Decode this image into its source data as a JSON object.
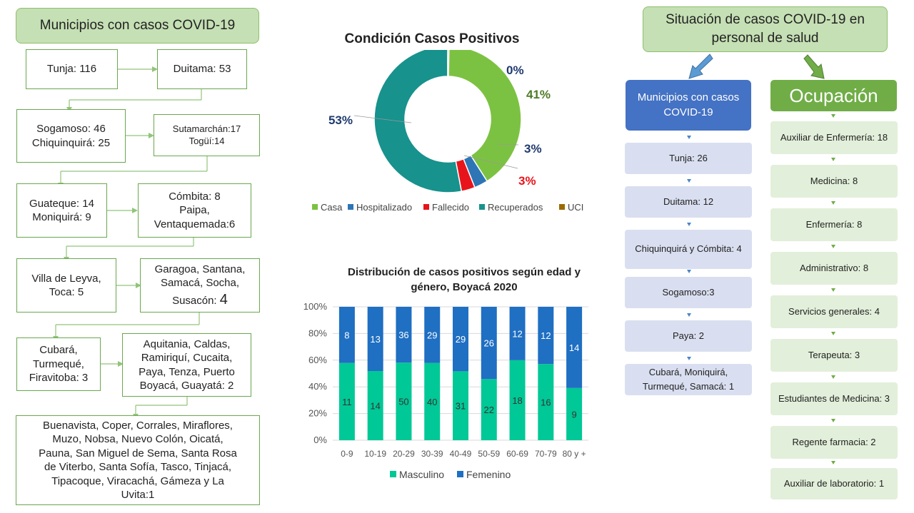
{
  "left": {
    "title": "Municipios con casos COVID-19",
    "boxes": [
      [
        "Tunja: 116"
      ],
      [
        "Duitama: 53"
      ],
      [
        "Sogamoso: 46",
        "Chiquinquirá: 25"
      ],
      [
        "Sutamarchán:17",
        "Togüí:14"
      ],
      [
        "Guateque: 14",
        "Moniquirá: 9"
      ],
      [
        "Cómbita: 8",
        "Paipa,",
        "Ventaquemada:6"
      ],
      [
        "Villa de Leyva,",
        "Toca: 5"
      ],
      [
        "Garagoa, Santana,",
        "Samacá, Socha,",
        "Susacón: "
      ],
      [
        "Cubará,",
        "Turmequé,",
        "Firavitoba: 3"
      ],
      [
        "Aquitania, Caldas,",
        "Ramiriquí, Cucaita,",
        "Paya, Tenza, Puerto",
        "Boyacá, Guayatá: 2"
      ],
      [
        "Buenavista, Coper, Corrales, Miraflores,",
        "Muzo, Nobsa, Nuevo Colón, Oicatá,",
        "Pauna, San Miguel de Sema, Santa Rosa",
        "de Viterbo, Santa Sofía, Tasco, Tinjacá,",
        "Tipacoque, Viracachá, Gámeza y La",
        "Uvita:1"
      ]
    ],
    "big_four": "4"
  },
  "chart_data": [
    {
      "type": "pie",
      "title": "Condición Casos Positivos",
      "categories": [
        "Casa",
        "Hospitalizado",
        "Fallecido",
        "Recuperados",
        "UCI"
      ],
      "values": [
        41,
        3,
        3,
        53,
        0
      ],
      "labels": [
        "41%",
        "3%",
        "3%",
        "53%",
        "0%"
      ],
      "colors": [
        "#7cc242",
        "#2e75b6",
        "#e8141b",
        "#17928d",
        "#9c6b00"
      ],
      "donut": true,
      "legend_position": "bottom"
    },
    {
      "type": "bar",
      "stacked": true,
      "percent": true,
      "title": "Distribución de casos positivos según edad y género, Boyacá 2020",
      "categories": [
        "0-9",
        "10-19",
        "20-29",
        "30-39",
        "40-49",
        "50-59",
        "60-69",
        "70-79",
        "80 y +"
      ],
      "series": [
        {
          "name": "Masculino",
          "values": [
            11,
            14,
            50,
            40,
            31,
            22,
            18,
            16,
            9
          ],
          "color": "#00c896"
        },
        {
          "name": "Femenino",
          "values": [
            8,
            13,
            36,
            29,
            29,
            26,
            12,
            12,
            14
          ],
          "color": "#1f6fc2"
        }
      ],
      "yticks": [
        "0%",
        "20%",
        "40%",
        "60%",
        "80%",
        "100%"
      ],
      "ylim": [
        0,
        100
      ],
      "grid": true,
      "legend_position": "bottom"
    }
  ],
  "right": {
    "title": "Situación de casos COVID-19 en personal de salud",
    "blue_header": "Municipios con casos COVID-19",
    "blue_items": [
      "Tunja: 26",
      "Duitama: 12",
      "Chiquinquirá y Cómbita: 4",
      "Sogamoso:3",
      "Paya: 2",
      "Cubará, Moniquirá, Turmequé, Samacá: 1"
    ],
    "green_header": "Ocupación",
    "green_items": [
      "Auxiliar de Enfermería: 18",
      "Medicina: 8",
      "Enfermería: 8",
      "Administrativo:  8",
      "Servicios generales: 4",
      "Terapeuta: 3",
      "Estudiantes de Medicina: 3",
      "Regente farmacia: 2",
      "Auxiliar de laboratorio: 1"
    ]
  }
}
